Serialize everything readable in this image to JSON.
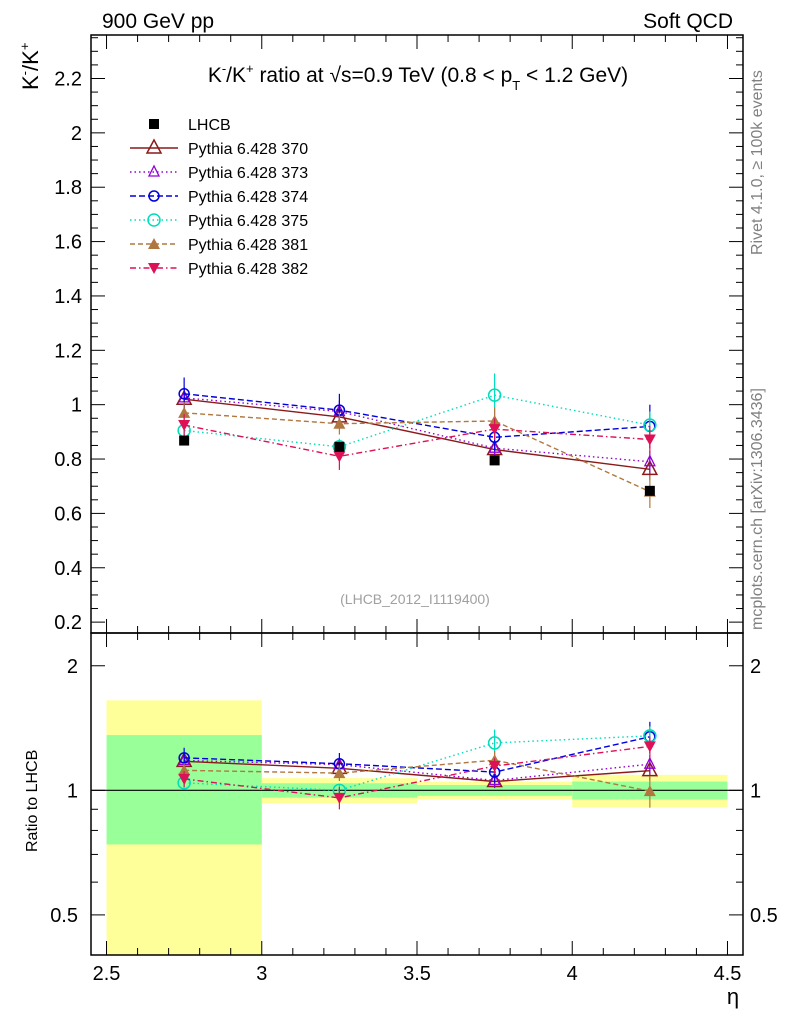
{
  "header": {
    "left": "900 GeV pp",
    "right": "Soft QCD"
  },
  "title_parts": [
    "K",
    "-",
    "/K",
    "+",
    " ratio at ",
    "√s",
    "=0.9 TeV (0.8 < p",
    "T",
    " < 1.2 GeV)"
  ],
  "ylabel_parts": [
    "K",
    "-",
    "/K",
    "+"
  ],
  "side_labels": {
    "rivet": "Rivet 4.1.0, ≥ 100k events",
    "mcplots": "mcplots.cern.ch [arXiv:1306.3436]"
  },
  "watermark": "(LHCB_2012_I1119400)",
  "ratio_ylabel": "Ratio to LHCB",
  "xlabel": "η",
  "colors": {
    "data": "#000000",
    "s370": "#8b1a1a",
    "s373": "#9400d3",
    "s374": "#0000dd",
    "s375": "#00ddbb",
    "s381": "#b07840",
    "s382": "#dd1155",
    "band_outer": "#ffff99",
    "band_inner": "#99ff99"
  },
  "chart_data": {
    "type": "scatter",
    "x": [
      2.75,
      3.25,
      3.75,
      4.25
    ],
    "xlim": [
      2.45,
      4.55
    ],
    "xbins": [
      [
        2.5,
        3.0
      ],
      [
        3.0,
        3.5
      ],
      [
        3.5,
        4.0
      ],
      [
        4.0,
        4.5
      ]
    ],
    "xticks": [
      "2.5",
      "3",
      "3.5",
      "4",
      "4.5"
    ],
    "main": {
      "ylim": [
        0.16,
        2.36
      ],
      "yticks": [
        "0.2",
        "0.4",
        "0.6",
        "0.8",
        "1",
        "1.2",
        "1.4",
        "1.6",
        "1.8",
        "2",
        "2.2"
      ]
    },
    "ratio": {
      "ylim": [
        0.4,
        2.4
      ],
      "yticks": [
        "0.5",
        "1",
        "2"
      ],
      "band_outer": [
        [
          0.35,
          1.65
        ],
        [
          0.93,
          1.07
        ],
        [
          0.95,
          1.05
        ],
        [
          0.91,
          1.09
        ]
      ],
      "band_inner": [
        [
          0.74,
          1.36
        ],
        [
          0.96,
          1.04
        ],
        [
          0.97,
          1.03
        ],
        [
          0.95,
          1.05
        ]
      ]
    },
    "series": [
      {
        "key": "data",
        "name": "LHCB",
        "values": [
          0.868,
          0.845,
          0.795,
          0.683
        ],
        "err": [
          0.01,
          0.01,
          0.01,
          0.01
        ],
        "marker": "square",
        "dash": "none"
      },
      {
        "key": "s370",
        "name": "Pythia 6.428 370",
        "values": [
          1.02,
          0.955,
          0.835,
          0.762
        ],
        "err": [
          0.04,
          0.04,
          0.03,
          0.04
        ],
        "marker": "triangle-open",
        "dash": ""
      },
      {
        "key": "s373",
        "name": "Pythia 6.428 373",
        "values": [
          1.025,
          0.975,
          0.84,
          0.79
        ],
        "err": [
          0.04,
          0.04,
          0.03,
          0.04
        ],
        "marker": "triangle-open-small",
        "dash": "1.5,3"
      },
      {
        "key": "s374",
        "name": "Pythia 6.428 374",
        "values": [
          1.04,
          0.98,
          0.88,
          0.92
        ],
        "err": [
          0.06,
          0.06,
          0.05,
          0.08
        ],
        "marker": "circle-open",
        "dash": "6,3"
      },
      {
        "key": "s375",
        "name": "Pythia 6.428 375",
        "values": [
          0.905,
          0.845,
          1.035,
          0.925
        ],
        "err": [
          0.03,
          0.03,
          0.08,
          0.05
        ],
        "marker": "circle-open-large",
        "dash": "1.5,3"
      },
      {
        "key": "s381",
        "name": "Pythia 6.428 381",
        "values": [
          0.97,
          0.93,
          0.94,
          0.68
        ],
        "err": [
          0.04,
          0.04,
          0.05,
          0.06
        ],
        "marker": "triangle-filled",
        "dash": "5,3"
      },
      {
        "key": "s382",
        "name": "Pythia 6.428 382",
        "values": [
          0.925,
          0.81,
          0.91,
          0.872
        ],
        "err": [
          0.04,
          0.05,
          0.04,
          0.05
        ],
        "marker": "triangle-down-filled",
        "dash": "6,3,1.5,3"
      }
    ]
  }
}
